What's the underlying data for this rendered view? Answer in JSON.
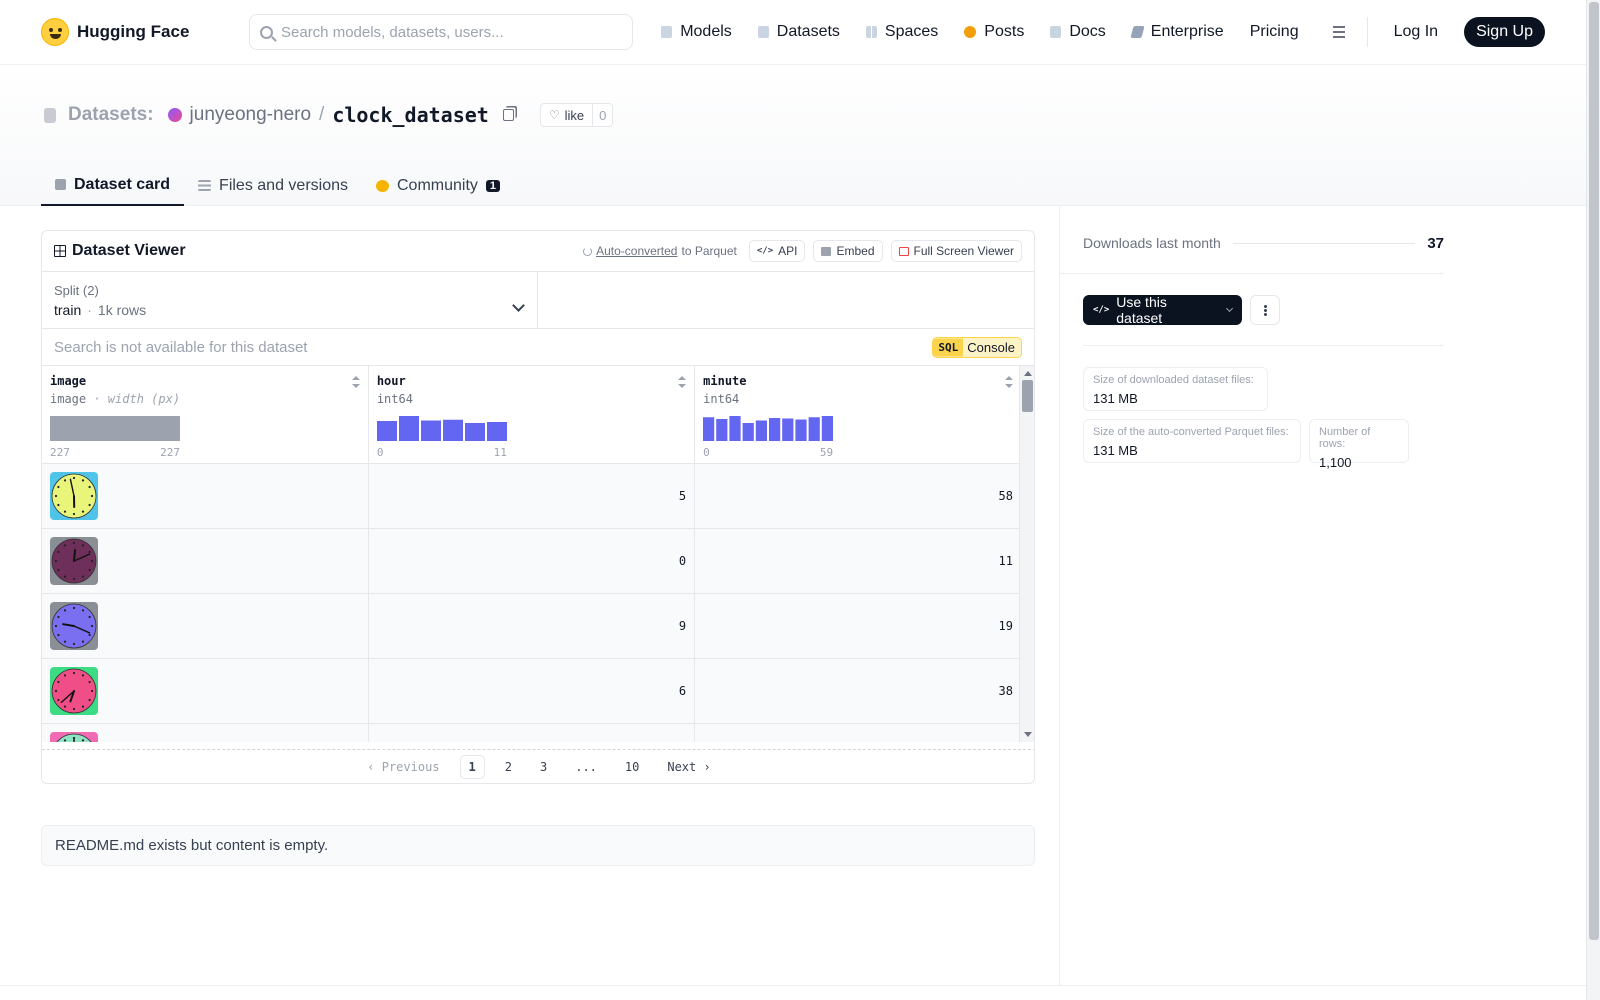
{
  "nav": {
    "brand": "Hugging Face",
    "search_placeholder": "Search models, datasets, users...",
    "items": [
      "Models",
      "Datasets",
      "Spaces",
      "Posts",
      "Docs",
      "Enterprise",
      "Pricing"
    ],
    "login": "Log In",
    "signup": "Sign Up"
  },
  "repo": {
    "section": "Datasets:",
    "owner": "junyeong-nero",
    "separator": "/",
    "name": "clock_dataset",
    "like_label": "like",
    "like_count": "0"
  },
  "tabs": [
    {
      "label": "Dataset card",
      "active": true
    },
    {
      "label": "Files and versions",
      "active": false
    },
    {
      "label": "Community",
      "active": false,
      "badge": "1"
    }
  ],
  "viewer": {
    "title": "Dataset Viewer",
    "auto_converted": "Auto-converted",
    "to_parquet": "to Parquet",
    "api": "API",
    "embed": "Embed",
    "fullscreen": "Full Screen Viewer",
    "split_label": "Split (2)",
    "split_value": "train",
    "split_dot": "·",
    "split_rows": "1k rows",
    "search_unavailable": "Search is not available for this dataset",
    "sql_tag": "SQL",
    "sql_console": "Console",
    "columns": [
      {
        "name": "image",
        "type": "image",
        "type_extra": "· width (px)",
        "min": "227",
        "max": "227"
      },
      {
        "name": "hour",
        "type": "int64",
        "type_extra": "",
        "min": "0",
        "max": "11"
      },
      {
        "name": "minute",
        "type": "int64",
        "type_extra": "",
        "min": "0",
        "max": "59"
      }
    ],
    "histograms": {
      "image": [
        1.0
      ],
      "hour": [
        0.8,
        1.0,
        0.82,
        0.85,
        0.72,
        0.76
      ],
      "minute": [
        0.95,
        0.88,
        1.0,
        0.72,
        0.82,
        0.92,
        0.9,
        0.86,
        0.95,
        1.0
      ]
    },
    "rows": [
      {
        "hour": "5",
        "minute": "58",
        "bg": "#4fc3e8",
        "face": "#e8f57a",
        "hands": [
          [
            5,
            58
          ]
        ]
      },
      {
        "hour": "0",
        "minute": "11",
        "bg": "#8a8f96",
        "face": "#6e2f5a",
        "hands": [
          [
            0,
            11
          ]
        ]
      },
      {
        "hour": "9",
        "minute": "19",
        "bg": "#8a8f96",
        "face": "#7a6ff0",
        "hands": [
          [
            9,
            19
          ]
        ]
      },
      {
        "hour": "6",
        "minute": "38",
        "bg": "#3ddc84",
        "face": "#ef4f86",
        "hands": [
          [
            6,
            38
          ]
        ]
      },
      {
        "hour": "",
        "minute": "",
        "bg": "#f06ab4",
        "face": "#8fe3c5",
        "hands": [
          [
            12,
            0
          ]
        ]
      }
    ],
    "pager": {
      "previous": "Previous",
      "pages": [
        "1",
        "2",
        "3",
        "...",
        "10"
      ],
      "current": "1",
      "next": "Next"
    }
  },
  "readme_text": "README.md exists but content is empty.",
  "side": {
    "downloads_label": "Downloads last month",
    "downloads_count": "37",
    "use_dataset": "Use this dataset",
    "stats": [
      {
        "label": "Size of downloaded dataset files:",
        "value": "131 MB"
      },
      {
        "label": "Size of the auto-converted Parquet files:",
        "value": "131 MB"
      },
      {
        "label": "Number of rows:",
        "value": "1,100"
      }
    ]
  },
  "colors": {
    "histogram_bar": "#6366f1",
    "image_hist": "#9ca3af",
    "primary_dark": "#0b1220"
  }
}
